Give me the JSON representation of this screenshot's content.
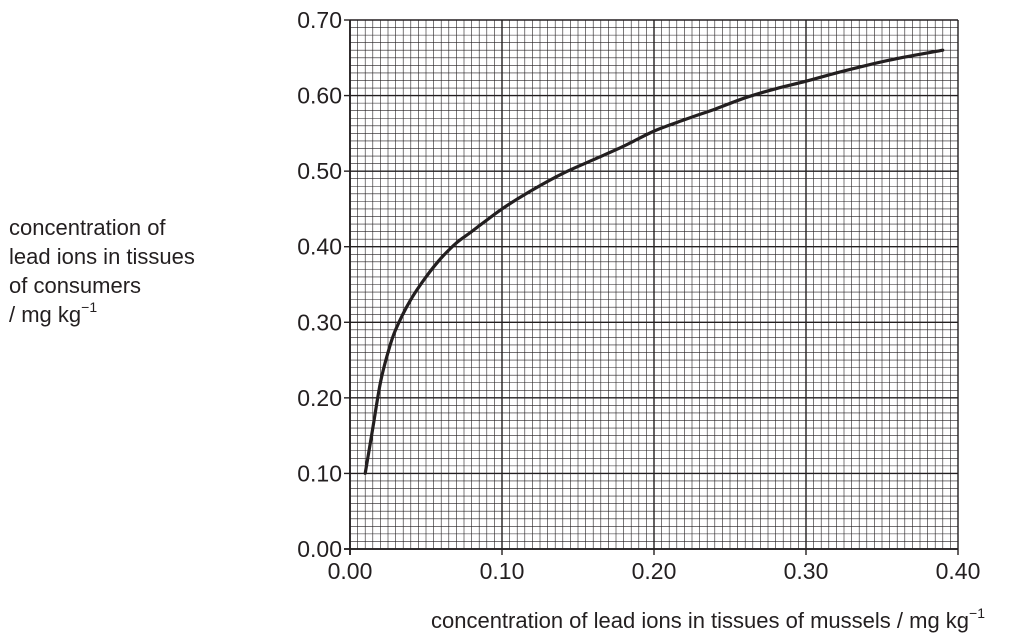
{
  "chart_data": {
    "type": "line",
    "title": "",
    "ylabel_lines": [
      "concentration of",
      "lead ions in tissues",
      "of consumers",
      "/ mg kg"
    ],
    "ylabel_unit_sup": "−1",
    "xlabel": "concentration of lead ions in tissues of mussels / mg kg",
    "xlabel_unit_sup": "−1",
    "xlim": [
      0.0,
      0.4
    ],
    "ylim": [
      0.0,
      0.7
    ],
    "xticks": [
      0.0,
      0.1,
      0.2,
      0.3,
      0.4
    ],
    "xtick_labels": [
      "0.00",
      "0.10",
      "0.20",
      "0.30",
      "0.40"
    ],
    "yticks": [
      0.0,
      0.1,
      0.2,
      0.3,
      0.4,
      0.5,
      0.6,
      0.7
    ],
    "ytick_labels": [
      "0.00",
      "0.10",
      "0.20",
      "0.30",
      "0.40",
      "0.50",
      "0.60",
      "0.70"
    ],
    "grid": true,
    "minor_divisions_x": 20,
    "minor_divisions_y": 10,
    "line_color": "#231f20",
    "grid_color": "#231f20",
    "series": [
      {
        "x": [
          0.01,
          0.015,
          0.02,
          0.025,
          0.03,
          0.04,
          0.05,
          0.06,
          0.07,
          0.08,
          0.1,
          0.12,
          0.14,
          0.16,
          0.18,
          0.2,
          0.22,
          0.24,
          0.26,
          0.28,
          0.3,
          0.32,
          0.34,
          0.36,
          0.39
        ],
        "y": [
          0.1,
          0.16,
          0.22,
          0.26,
          0.29,
          0.33,
          0.36,
          0.385,
          0.405,
          0.42,
          0.45,
          0.475,
          0.497,
          0.515,
          0.533,
          0.553,
          0.568,
          0.582,
          0.597,
          0.609,
          0.619,
          0.63,
          0.64,
          0.649,
          0.66
        ]
      }
    ]
  }
}
